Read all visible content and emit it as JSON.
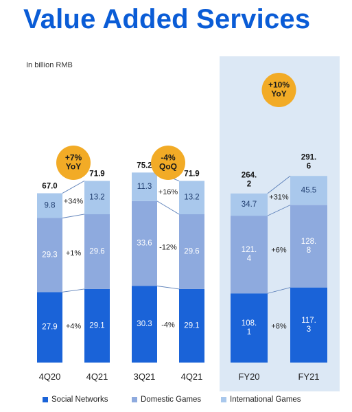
{
  "title": "Value Added Services",
  "unit_label": "In billion RMB",
  "colors": {
    "social": "#1a63d8",
    "domestic": "#8eaade",
    "international": "#a9c8ec",
    "badge": "#f2ab26",
    "highlight_panel": "#dce8f5"
  },
  "chart_data": {
    "type": "bar",
    "stacked": true,
    "unit": "In billion RMB",
    "legend_position": "bottom",
    "series_names": [
      "Social Networks",
      "Domestic Games",
      "International Games"
    ],
    "groups": [
      {
        "badge": [
          "+7%",
          "YoY"
        ],
        "bars": [
          {
            "label": "4Q20",
            "total": "67.0",
            "values": [
              27.9,
              29.3,
              9.8
            ],
            "value_labels": [
              "27.9",
              "29.3",
              "9.8"
            ]
          },
          {
            "label": "4Q21",
            "total": "71.9",
            "values": [
              29.1,
              29.6,
              13.2
            ],
            "value_labels": [
              "29.1",
              "29.6",
              "13.2"
            ]
          }
        ],
        "changes": [
          "+4%",
          "+1%",
          "+34%"
        ]
      },
      {
        "badge": [
          "-4%",
          "QoQ"
        ],
        "bars": [
          {
            "label": "3Q21",
            "total": "75.2",
            "values": [
              30.3,
              33.6,
              11.3
            ],
            "value_labels": [
              "30.3",
              "33.6",
              "11.3"
            ]
          },
          {
            "label": "4Q21",
            "total": "71.9",
            "values": [
              29.1,
              29.6,
              13.2
            ],
            "value_labels": [
              "29.1",
              "29.6",
              "13.2"
            ]
          }
        ],
        "changes": [
          "-4%",
          "-12%",
          "+16%"
        ]
      },
      {
        "badge": [
          "+10%",
          "YoY"
        ],
        "highlight": true,
        "bars": [
          {
            "label": "FY20",
            "total": [
              "264.",
              "2"
            ],
            "values": [
              108.1,
              121.4,
              34.7
            ],
            "value_labels": [
              [
                "108.",
                "1"
              ],
              [
                "121.",
                "4"
              ],
              "34.7"
            ]
          },
          {
            "label": "FY21",
            "total": [
              "291.",
              "6"
            ],
            "values": [
              117.3,
              128.8,
              45.5
            ],
            "value_labels": [
              [
                "117.",
                "3"
              ],
              [
                "128.",
                "8"
              ],
              "45.5"
            ]
          }
        ],
        "changes": [
          "+8%",
          "+6%",
          "+31%"
        ]
      }
    ]
  }
}
